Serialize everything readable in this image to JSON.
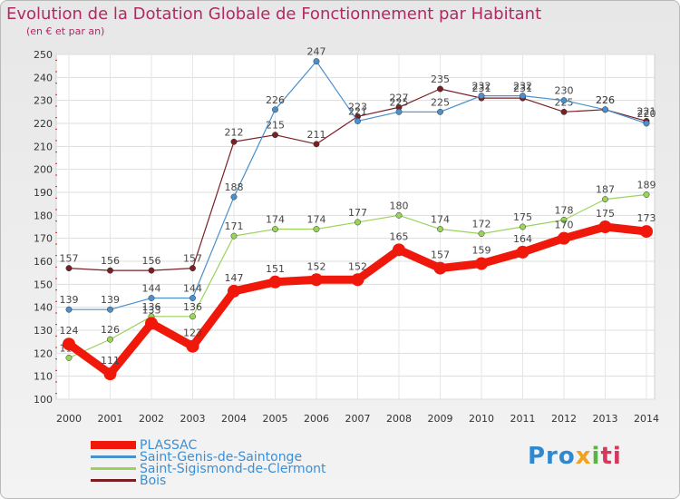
{
  "title": "Evolution de la Dotation Globale de Fonctionnement par Habitant",
  "subtitle": "(en € et par an)",
  "logo": [
    "Pro",
    "x",
    "i",
    "ti"
  ],
  "chart_data": {
    "type": "line",
    "title": "Evolution de la Dotation Globale de Fonctionnement par Habitant",
    "subtitle": "(en € et par an)",
    "x": [
      "2000",
      "2001",
      "2002",
      "2003",
      "2004",
      "2005",
      "2006",
      "2007",
      "2008",
      "2009",
      "2010",
      "2011",
      "2012",
      "2013",
      "2014"
    ],
    "ylim": [
      100,
      250
    ],
    "yticks": [
      100,
      110,
      120,
      130,
      140,
      150,
      160,
      170,
      180,
      190,
      200,
      210,
      220,
      230,
      240,
      250
    ],
    "grid": true,
    "legend_position": "bottom-left",
    "series": [
      {
        "name": "Bois",
        "color": "#7a1f24",
        "values": [
          157,
          156,
          156,
          157,
          212,
          215,
          211,
          223,
          227,
          235,
          231,
          231,
          225,
          226,
          221
        ]
      },
      {
        "name": "Saint-Sigismond-de-Clermont",
        "color": "#99d35a",
        "values": [
          118,
          126,
          136,
          136,
          171,
          174,
          174,
          177,
          180,
          174,
          172,
          175,
          178,
          187,
          189
        ]
      },
      {
        "name": "Saint-Genis-de-Saintonge",
        "color": "#4a90cc",
        "values": [
          139,
          139,
          144,
          144,
          188,
          226,
          247,
          221,
          225,
          225,
          232,
          232,
          230,
          226,
          220
        ]
      },
      {
        "name": "PLASSAC",
        "color": "#f0180a",
        "values": [
          124,
          111,
          133,
          123,
          147,
          151,
          152,
          152,
          165,
          157,
          159,
          164,
          170,
          175,
          173
        ]
      }
    ]
  }
}
